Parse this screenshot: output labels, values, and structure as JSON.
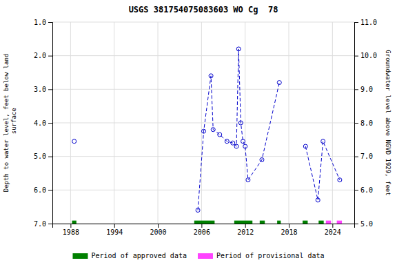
{
  "chart_data": {
    "type": "line",
    "title": "USGS 381754075083603 WO Cg  78",
    "ylabel": "Depth to water level, feet below land\n surface",
    "y2label": "Groundwater level above NGVD 1929, feet",
    "xlim": [
      1985.5,
      2027.0
    ],
    "ylim": [
      7.0,
      1.0
    ],
    "y2lim": [
      5.0,
      11.0
    ],
    "xticks": [
      1988,
      1994,
      2000,
      2006,
      2012,
      2018,
      2024
    ],
    "yticks": [
      {
        "value": 1.0,
        "label": "1.0"
      },
      {
        "value": 2.0,
        "label": "2.0"
      },
      {
        "value": 3.0,
        "label": "3.0"
      },
      {
        "value": 4.0,
        "label": "4.0"
      },
      {
        "value": 5.0,
        "label": "5.0"
      },
      {
        "value": 6.0,
        "label": "6.0"
      },
      {
        "value": 7.0,
        "label": "7.0"
      }
    ],
    "y2ticks": [
      {
        "value": 5.0,
        "label": "5.0"
      },
      {
        "value": 6.0,
        "label": "6.0"
      },
      {
        "value": 7.0,
        "label": "7.0"
      },
      {
        "value": 8.0,
        "label": "8.0"
      },
      {
        "value": 9.0,
        "label": "9.0"
      },
      {
        "value": 10.0,
        "label": "10.0"
      },
      {
        "value": 11.0,
        "label": "11.0"
      }
    ],
    "grid": true,
    "legend": "bottom",
    "series": [
      {
        "type": "line",
        "color": "#0000cc",
        "marker": "circle-open",
        "line_style": "dashed",
        "x": [
          1988.5
        ],
        "values": [
          4.55
        ]
      },
      {
        "type": "line",
        "color": "#0000cc",
        "marker": "circle-open",
        "line_style": "dashed",
        "x": [
          2005.5,
          2006.3,
          2007.3,
          2007.6,
          2008.5,
          2009.5,
          2010.3,
          2010.8,
          2011.1,
          2011.4,
          2011.7,
          2012.0,
          2012.4,
          2014.3,
          2016.7
        ],
        "values": [
          6.6,
          4.25,
          2.6,
          4.2,
          4.35,
          4.55,
          4.6,
          4.7,
          1.8,
          4.0,
          4.55,
          4.7,
          5.7,
          5.1,
          2.8
        ]
      },
      {
        "type": "line",
        "color": "#0000cc",
        "marker": "circle-open",
        "line_style": "dashed",
        "x": [
          2020.3,
          2022.0,
          2022.7,
          2025.0
        ],
        "values": [
          4.7,
          6.3,
          4.55,
          5.7
        ]
      },
      {
        "name": "Period of approved data",
        "type": "range",
        "color": "#008000",
        "ranges": [
          [
            1988.2,
            1988.8
          ],
          [
            2005.0,
            2007.8
          ],
          [
            2010.5,
            2013.0
          ],
          [
            2014.0,
            2014.7
          ],
          [
            2016.4,
            2016.9
          ],
          [
            2019.9,
            2020.6
          ],
          [
            2022.1,
            2022.8
          ]
        ],
        "bar_y": 7.0,
        "bar_height": 0.09
      },
      {
        "name": "Period of provisional data",
        "type": "range",
        "color": "#ff44ff",
        "ranges": [
          [
            2023.1,
            2023.8
          ],
          [
            2024.6,
            2025.3
          ]
        ],
        "bar_y": 7.0,
        "bar_height": 0.09
      }
    ]
  }
}
